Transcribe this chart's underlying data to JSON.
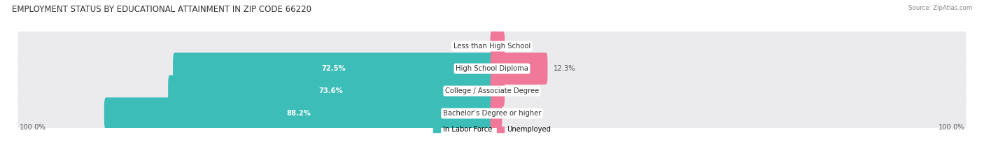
{
  "title": "EMPLOYMENT STATUS BY EDUCATIONAL ATTAINMENT IN ZIP CODE 66220",
  "source": "Source: ZipAtlas.com",
  "categories": [
    "Less than High School",
    "High School Diploma",
    "College / Associate Degree",
    "Bachelor’s Degree or higher"
  ],
  "labor_force": [
    0.0,
    72.5,
    73.6,
    88.2
  ],
  "unemployed": [
    0.0,
    12.3,
    0.0,
    1.9
  ],
  "color_labor": "#3dbdb8",
  "color_unemployed": "#f07898",
  "color_bg_row_light": "#ebebee",
  "color_bg_row_dark": "#e0e0e4",
  "axis_label_left": "100.0%",
  "axis_label_right": "100.0%",
  "legend_labor": "In Labor Force",
  "legend_unemployed": "Unemployed",
  "title_fontsize": 8.5,
  "label_fontsize": 7.2,
  "bar_height": 0.62,
  "max_val": 100.0
}
